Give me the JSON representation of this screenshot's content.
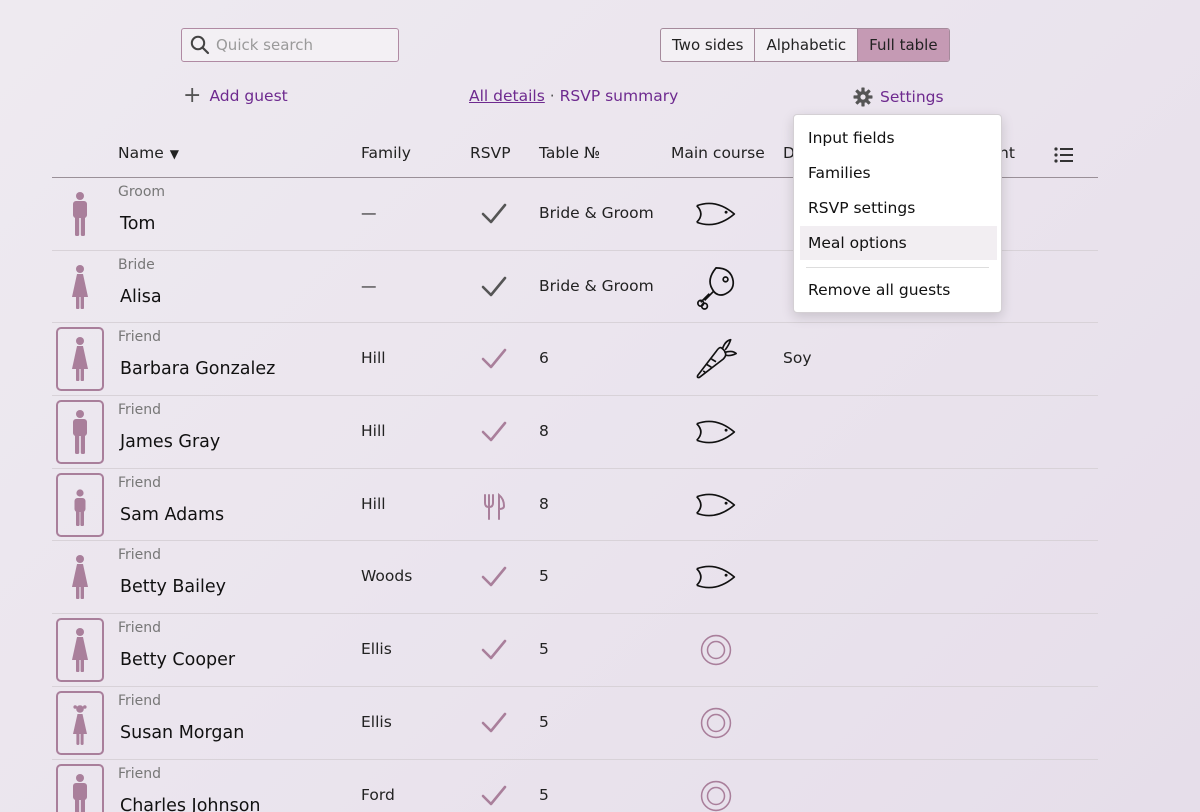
{
  "search": {
    "placeholder": "Quick search"
  },
  "views": [
    {
      "label": "Two sides",
      "active": false
    },
    {
      "label": "Alphabetic",
      "active": false
    },
    {
      "label": "Full table",
      "active": true
    }
  ],
  "actions": {
    "add_guest": "Add guest",
    "all_details": "All details",
    "separator": "·",
    "rsvp_summary": "RSVP summary",
    "settings": "Settings"
  },
  "columns": {
    "name": "Name",
    "family": "Family",
    "rsvp": "RSVP",
    "table": "Table №",
    "main_course": "Main course",
    "d": "D",
    "nt": "nt"
  },
  "menu": {
    "items": [
      "Input fields",
      "Families",
      "RSVP settings",
      "Meal options"
    ],
    "danger_item": "Remove all guests"
  },
  "guests": [
    {
      "role": "Groom",
      "name": "Tom",
      "gender": "male",
      "boxed": false,
      "family": "—",
      "rsvp": "check-dark",
      "table": "Bride & Groom",
      "meal": "fish-icon",
      "diet": ""
    },
    {
      "role": "Bride",
      "name": "Alisa",
      "gender": "female",
      "boxed": false,
      "family": "—",
      "rsvp": "check-dark",
      "table": "Bride & Groom",
      "meal": "meat-icon",
      "diet": ""
    },
    {
      "role": "Friend",
      "name": "Barbara Gonzalez",
      "gender": "female",
      "boxed": true,
      "family": "Hill",
      "rsvp": "check",
      "table": "6",
      "meal": "carrot-icon",
      "diet": "Soy"
    },
    {
      "role": "Friend",
      "name": "James Gray",
      "gender": "male",
      "boxed": true,
      "family": "Hill",
      "rsvp": "check",
      "table": "8",
      "meal": "fish-icon",
      "diet": ""
    },
    {
      "role": "Friend",
      "name": "Sam Adams",
      "gender": "male-small",
      "boxed": true,
      "family": "Hill",
      "rsvp": "cutlery",
      "table": "8",
      "meal": "fish-icon",
      "diet": ""
    },
    {
      "role": "Friend",
      "name": "Betty Bailey",
      "gender": "female",
      "boxed": false,
      "family": "Woods",
      "rsvp": "check",
      "table": "5",
      "meal": "fish-icon",
      "diet": ""
    },
    {
      "role": "Friend",
      "name": "Betty Cooper",
      "gender": "female",
      "boxed": true,
      "family": "Ellis",
      "rsvp": "check",
      "table": "5",
      "meal": "plate-icon",
      "diet": ""
    },
    {
      "role": "Friend",
      "name": "Susan Morgan",
      "gender": "girl",
      "boxed": true,
      "family": "Ellis",
      "rsvp": "check",
      "table": "5",
      "meal": "plate-icon",
      "diet": ""
    },
    {
      "role": "Friend",
      "name": "Charles Johnson",
      "gender": "male",
      "boxed": true,
      "family": "Ford",
      "rsvp": "check",
      "table": "5",
      "meal": "plate-icon",
      "diet": ""
    }
  ],
  "colors": {
    "accent": "#c59ab4",
    "link": "#6e2a8f",
    "icon_mauve": "#a97f9b",
    "check_dark": "#555555"
  }
}
